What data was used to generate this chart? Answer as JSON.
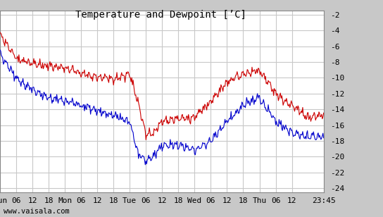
{
  "title": "Temperature and Dewpoint [’C]",
  "watermark": "www.vaisala.com",
  "ylim": [
    -24.5,
    -1.5
  ],
  "yticks": [
    -24,
    -22,
    -20,
    -18,
    -16,
    -14,
    -12,
    -10,
    -8,
    -6,
    -4,
    -2
  ],
  "ytick_labels": [
    "-24",
    "-22",
    "-20",
    "-18",
    "-16",
    "-14",
    "-12",
    "-10",
    "-8",
    "-6",
    "-4",
    "-2"
  ],
  "x_tick_positions": [
    0,
    6,
    12,
    18,
    24,
    30,
    36,
    42,
    48,
    54,
    60,
    66,
    72,
    78,
    84,
    90,
    96,
    102,
    108,
    119.75
  ],
  "x_tick_labels": [
    "Sun",
    "06",
    "12",
    "18",
    "Mon",
    "06",
    "12",
    "18",
    "Tue",
    "06",
    "12",
    "18",
    "Wed",
    "06",
    "12",
    "18",
    "Thu",
    "06",
    "12",
    "23:45"
  ],
  "xlim": [
    0,
    119.75
  ],
  "background_color": "#c8c8c8",
  "plot_bg_color": "#ffffff",
  "grid_color": "#c8c8c8",
  "temp_color": "#cc0000",
  "dewp_color": "#0000cc",
  "line_width": 0.8,
  "title_fontsize": 10,
  "tick_fontsize": 8
}
